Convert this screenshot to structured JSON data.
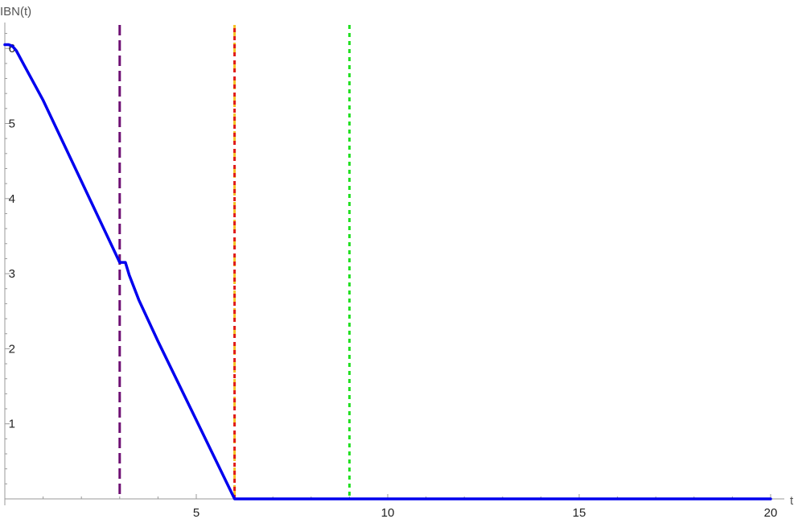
{
  "chart_data": {
    "type": "line",
    "title": "",
    "xlabel": "t",
    "ylabel": "IBN(t)",
    "xlim": [
      0,
      21
    ],
    "ylim": [
      0,
      6.3
    ],
    "x_ticks": [
      5,
      10,
      15,
      20
    ],
    "x_tick_labels": [
      "5",
      "10",
      "15",
      "20"
    ],
    "y_ticks": [
      1,
      2,
      3,
      4,
      5,
      6
    ],
    "y_tick_labels": [
      "1",
      "2",
      "3",
      "4",
      "5",
      "6"
    ],
    "grid": false,
    "series": [
      {
        "color": "#0000ee",
        "points": [
          [
            0,
            6.05
          ],
          [
            0.1,
            6.05
          ],
          [
            0.2,
            6.03
          ],
          [
            0.3,
            5.97
          ],
          [
            0.5,
            5.78
          ],
          [
            1.0,
            5.31
          ],
          [
            2.0,
            4.23
          ],
          [
            3.0,
            3.15
          ],
          [
            3.15,
            3.15
          ],
          [
            3.25,
            2.98
          ],
          [
            3.5,
            2.65
          ],
          [
            4.0,
            2.1
          ],
          [
            5.0,
            1.05
          ],
          [
            6.0,
            0.0
          ],
          [
            20.0,
            0.0
          ]
        ]
      }
    ],
    "vertical_lines": [
      {
        "x": 3,
        "color": "#6e0f73",
        "style": "dashed"
      },
      {
        "x": 6,
        "color": "#f6c224",
        "style": "long-dashed"
      },
      {
        "x": 6,
        "color": "#e01a1a",
        "style": "dotted"
      },
      {
        "x": 9,
        "color": "#22e022",
        "style": "dotted"
      }
    ]
  }
}
